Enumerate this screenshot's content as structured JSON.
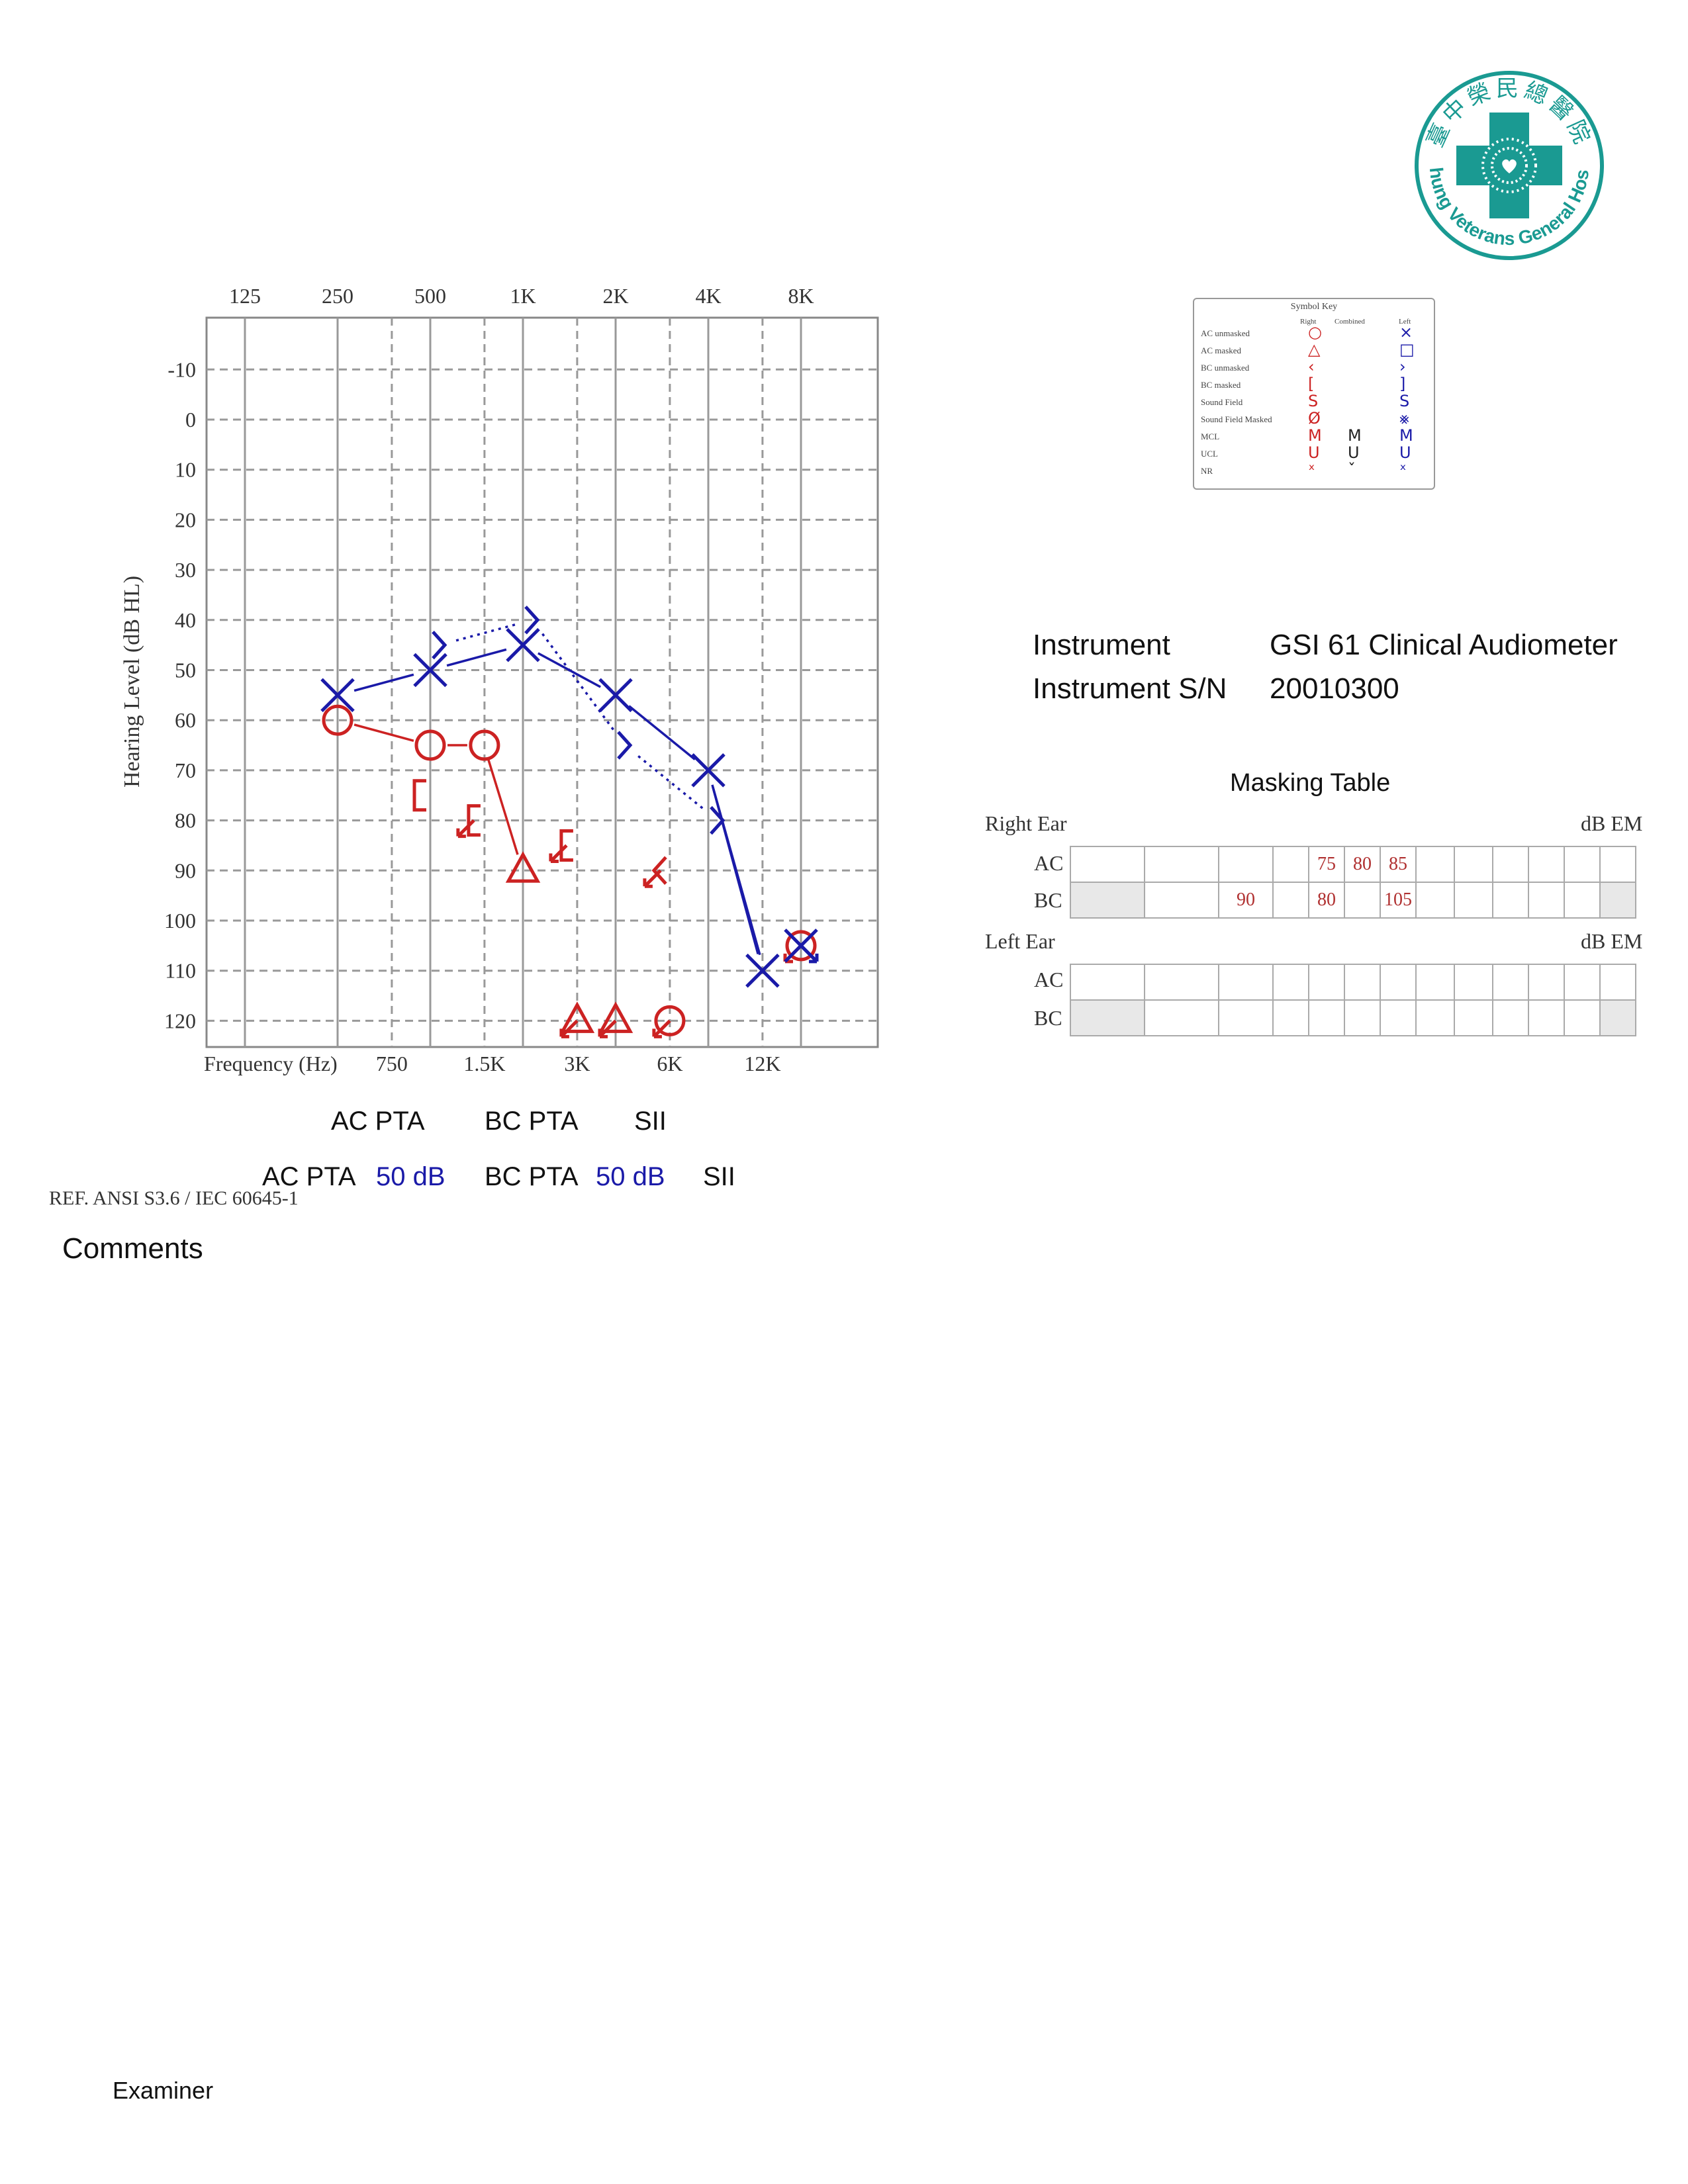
{
  "logo": {
    "chinese_text": "臺中榮民總醫院",
    "english_text": "Taichung Veterans General Hospital",
    "color": "#1a9a92"
  },
  "chart_data": {
    "type": "scatter",
    "chart_kind": "audiogram",
    "xlabel": "Frequency (Hz)",
    "ylabel": "Hearing Level (dB HL)",
    "x_ticks_top": [
      "125",
      "250",
      "500",
      "1K",
      "2K",
      "4K",
      "8K"
    ],
    "x_ticks_bottom": [
      "750",
      "1.5K",
      "3K",
      "6K",
      "12K"
    ],
    "x_scale": "log2",
    "ylim": [
      -20,
      125
    ],
    "y_ticks": [
      -10,
      0,
      10,
      20,
      30,
      40,
      50,
      60,
      70,
      80,
      90,
      100,
      110,
      120
    ],
    "y_reversed": true,
    "grid": true,
    "colors": {
      "right": "#cc2222",
      "left": "#1a1aa8"
    },
    "series": [
      {
        "ear": "right",
        "kind": "AC unmasked",
        "symbol": "circle",
        "connected": true,
        "points": [
          [
            250,
            60
          ],
          [
            500,
            65
          ],
          [
            750,
            65
          ]
        ]
      },
      {
        "ear": "right",
        "kind": "AC masked",
        "symbol": "triangle",
        "connected": false,
        "points": [
          [
            1000,
            90
          ]
        ]
      },
      {
        "ear": "right",
        "kind": "AC unmasked no response",
        "symbol": "circle",
        "arrow": true,
        "points": [
          [
            3000,
            120
          ]
        ]
      },
      {
        "ear": "right",
        "kind": "AC masked no response",
        "symbol": "triangle",
        "arrow": true,
        "points": [
          [
            1500,
            120
          ],
          [
            2000,
            120
          ]
        ]
      },
      {
        "ear": "right",
        "kind": "BC masked",
        "symbol": "bracket-left",
        "points": [
          [
            500,
            75
          ]
        ]
      },
      {
        "ear": "right",
        "kind": "BC masked no response",
        "symbol": "bracket-left",
        "arrow": true,
        "points": [
          [
            750,
            80
          ],
          [
            1500,
            85
          ]
        ]
      },
      {
        "ear": "right",
        "kind": "BC unmasked no response",
        "symbol": "chevron-left",
        "arrow": true,
        "points": [
          [
            3000,
            90
          ]
        ]
      },
      {
        "ear": "right",
        "kind": "AC unmasked no response",
        "symbol": "circle",
        "arrow": true,
        "points": [
          [
            8000,
            105
          ]
        ]
      },
      {
        "ear": "left",
        "kind": "AC unmasked",
        "symbol": "x",
        "connected": true,
        "points": [
          [
            250,
            55
          ],
          [
            500,
            50
          ],
          [
            1000,
            45
          ],
          [
            2000,
            55
          ],
          [
            4000,
            70
          ],
          [
            6000,
            110
          ]
        ]
      },
      {
        "ear": "left",
        "kind": "AC unmasked no response",
        "symbol": "x",
        "arrow": true,
        "points": [
          [
            8000,
            105
          ]
        ]
      },
      {
        "ear": "left",
        "kind": "BC unmasked",
        "symbol": "chevron-right",
        "connected": true,
        "dashed": true,
        "points": [
          [
            500,
            45
          ],
          [
            1000,
            40
          ],
          [
            2000,
            65
          ],
          [
            4000,
            80
          ]
        ]
      }
    ]
  },
  "symbol_key": {
    "title": "Symbol Key",
    "col_right": "Right",
    "col_combined": "Combined",
    "col_left": "Left",
    "rows": [
      {
        "label": "AC unmasked",
        "right": "○",
        "combined": "",
        "left": "×"
      },
      {
        "label": "AC masked",
        "right": "△",
        "combined": "",
        "left": "□"
      },
      {
        "label": "BC unmasked",
        "right": "‹",
        "combined": "",
        "left": "›"
      },
      {
        "label": "BC masked",
        "right": "[",
        "combined": "",
        "left": "]"
      },
      {
        "label": "Sound Field",
        "right": "S",
        "combined": "",
        "left": "S"
      },
      {
        "label": "Sound Field Masked",
        "right": "Ø",
        "combined": "",
        "left": "⨳"
      },
      {
        "label": "MCL",
        "right": "M",
        "combined": "M",
        "left": "M"
      },
      {
        "label": "UCL",
        "right": "U",
        "combined": "U",
        "left": "U"
      },
      {
        "label": "NR",
        "right": "ˣ",
        "combined": "ˇ",
        "left": "ˣ"
      }
    ]
  },
  "instrument": {
    "label": "Instrument",
    "value": "GSI 61 Clinical Audiometer",
    "sn_label": "Instrument S/N",
    "sn_value": "20010300"
  },
  "masking_table": {
    "title": "Masking Table",
    "right_ear_label": "Right Ear",
    "left_ear_label": "Left Ear",
    "unit": "dB EM",
    "ac_label": "AC",
    "bc_label": "BC",
    "right_ac": [
      "",
      "",
      "",
      "",
      "75",
      "80",
      "85",
      "",
      "",
      "",
      "",
      "",
      ""
    ],
    "right_bc": [
      "",
      "",
      "90",
      "",
      "80",
      "",
      "105",
      "",
      "",
      "",
      "",
      "",
      ""
    ],
    "left_ac": [
      "",
      "",
      "",
      "",
      "",
      "",
      "",
      "",
      "",
      "",
      "",
      "",
      ""
    ],
    "left_bc": [
      "",
      "",
      "",
      "",
      "",
      "",
      "",
      "",
      "",
      "",
      "",
      "",
      ""
    ]
  },
  "pta": {
    "ac_label": "AC PTA",
    "bc_label": "BC PTA",
    "sii_label": "SII",
    "ac_value": "50 dB",
    "bc_value": "50 dB"
  },
  "ref_text": "REF. ANSI S3.6 / IEC 60645-1",
  "comments_label": "Comments",
  "examiner_label": "Examiner"
}
